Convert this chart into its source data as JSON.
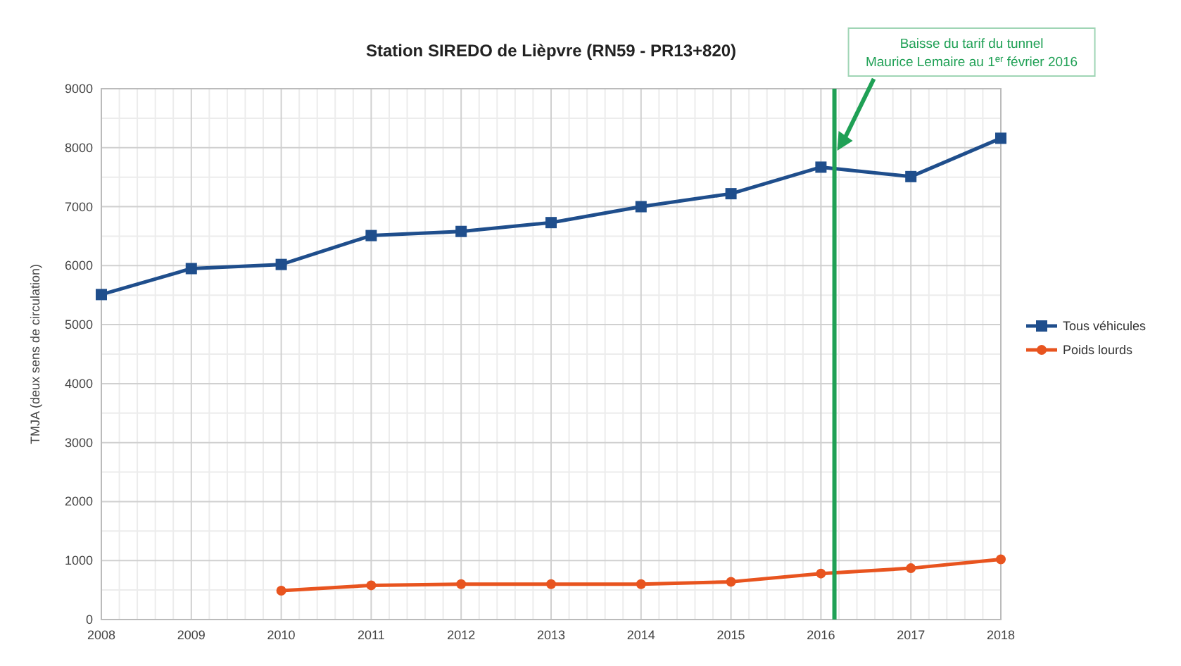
{
  "chart_data": {
    "type": "line",
    "title": "Station SIREDO de Lièpvre (RN59 - PR13+820)",
    "ylabel": "TMJA (deux sens de circulation)",
    "x": [
      2008,
      2009,
      2010,
      2011,
      2012,
      2013,
      2014,
      2015,
      2016,
      2017,
      2018
    ],
    "xlim": [
      2008,
      2018
    ],
    "xticks": [
      2008,
      2009,
      2010,
      2011,
      2012,
      2013,
      2014,
      2015,
      2016,
      2017,
      2018
    ],
    "ylim": [
      0,
      9000
    ],
    "yticks": [
      0,
      1000,
      2000,
      3000,
      4000,
      5000,
      6000,
      7000,
      8000,
      9000
    ],
    "grid": true,
    "legend": "right",
    "line_style": "solid",
    "series": [
      {
        "name": "Tous véhicules",
        "color": "#1f4e8c",
        "marker": "square",
        "values": [
          5510,
          5950,
          6020,
          6510,
          6580,
          6730,
          7000,
          7220,
          7670,
          7510,
          8160
        ]
      },
      {
        "name": "Poids lourds",
        "color": "#e8541f",
        "marker": "circle",
        "values": [
          null,
          null,
          490,
          580,
          600,
          600,
          600,
          640,
          780,
          870,
          1020
        ]
      }
    ],
    "ref_lines": [
      {
        "axis": "x",
        "value": 2016.15,
        "label": "Baisse du tarif du tunnel Maurice Lemaire au 1$^{er}$ février 2016",
        "color": "#1fa055"
      }
    ]
  }
}
